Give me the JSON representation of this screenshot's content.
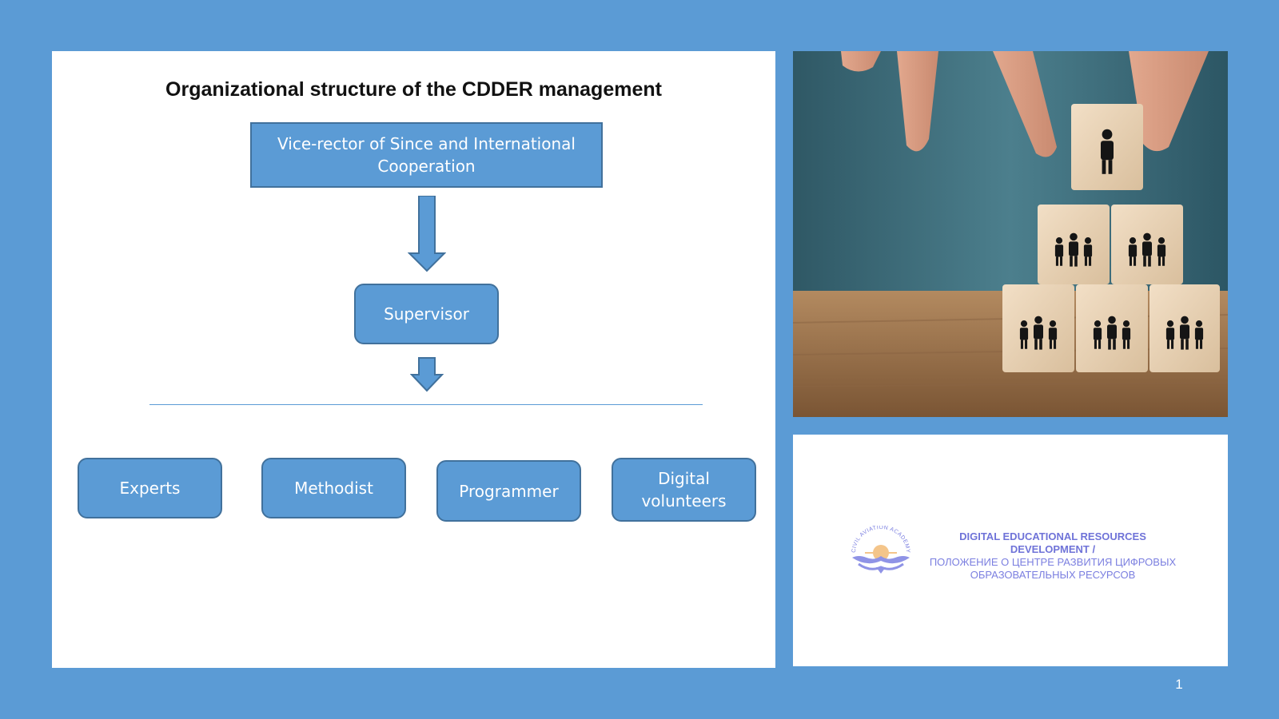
{
  "slide": {
    "title": "Organizational structure of the CDDER management",
    "page_number": "1"
  },
  "org_chart": {
    "top": "Vice-rector of Since and International Cooperation",
    "supervisor": "Supervisor",
    "subordinates": [
      "Experts",
      "Methodist",
      "Programmer",
      "Digital volunteers"
    ]
  },
  "logo": {
    "line1": "DIGITAL EDUCATIONAL RESOURCES DEVELOPMENT /",
    "line2": "ПОЛОЖЕНИЕ О ЦЕНТРЕ РАЗВИТИЯ ЦИФРОВЫХ ОБРАЗОВАТЕЛЬНЫХ РЕСУРСОВ",
    "emblem_text": "CIVIL AVIATION ACADEMY"
  },
  "colors": {
    "background": "#5b9bd5",
    "box_fill": "#5b9bd5",
    "box_border": "#41719c",
    "logo_text": "#7b7fe0"
  }
}
